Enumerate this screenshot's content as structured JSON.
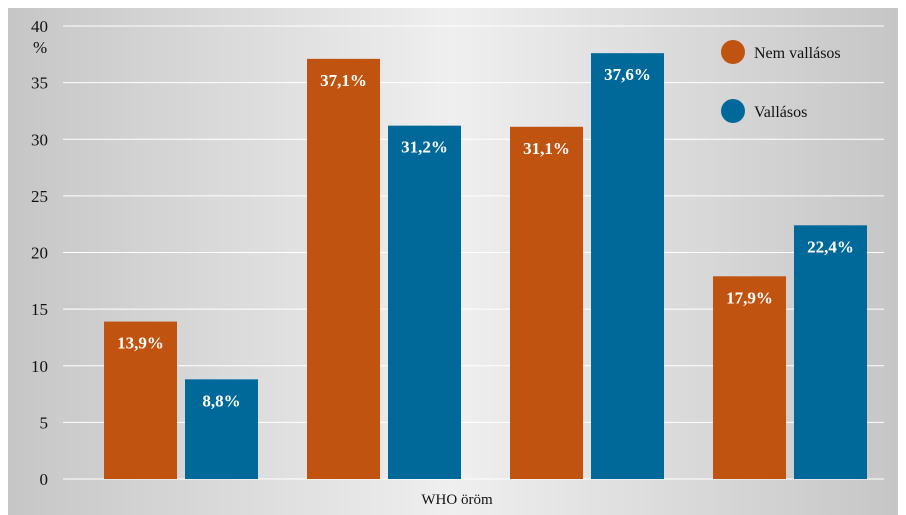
{
  "chart_data": {
    "type": "bar",
    "unit_label": "%",
    "xlabel": "WHO öröm",
    "ylim": [
      0,
      40
    ],
    "yticks": [
      0,
      5,
      10,
      15,
      20,
      25,
      30,
      35,
      40
    ],
    "grid": true,
    "legend_position": "top-right",
    "colors": {
      "Nem vallásos": "#c0530f",
      "Vallásos": "#00699a"
    },
    "categories": [
      "",
      "",
      "",
      ""
    ],
    "series": [
      {
        "name": "Nem vallásos",
        "values": [
          13.9,
          37.1,
          31.1,
          17.9
        ],
        "labels": [
          "13,9%",
          "37,1%",
          "31,1%",
          "17,9%"
        ]
      },
      {
        "name": "Vallásos",
        "values": [
          8.8,
          31.2,
          37.6,
          22.4
        ],
        "labels": [
          "8,8%",
          "31,2%",
          "37,6%",
          "22,4%"
        ]
      }
    ]
  }
}
